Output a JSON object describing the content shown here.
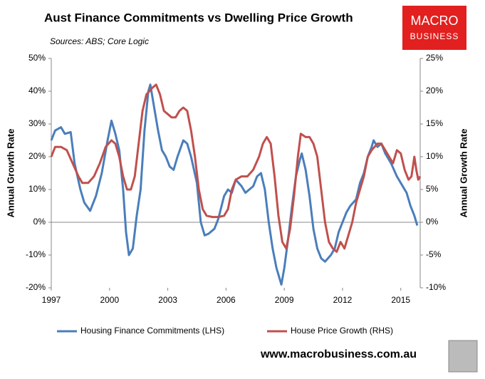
{
  "chart_data": {
    "type": "line",
    "title": "Aust Finance Commitments vs Dwelling Price Growth",
    "subtitle": "Sources: ABS; Core Logic",
    "y_label": "Annual Growth Rate",
    "y2_label": "Annual Growth Rate",
    "xlim": [
      1997,
      2016
    ],
    "xticks": [
      1997,
      2000,
      2003,
      2006,
      2009,
      2012,
      2015
    ],
    "ylim": [
      -20,
      50
    ],
    "yticks": [
      {
        "value": -20,
        "label": "-20%"
      },
      {
        "value": -10,
        "label": "-10%"
      },
      {
        "value": 0,
        "label": "0%"
      },
      {
        "value": 10,
        "label": "10%"
      },
      {
        "value": 20,
        "label": "20%"
      },
      {
        "value": 30,
        "label": "30%"
      },
      {
        "value": 40,
        "label": "40%"
      },
      {
        "value": 50,
        "label": "50%"
      }
    ],
    "y2lim": [
      -10,
      25
    ],
    "y2ticks": [
      {
        "value": -10,
        "label": "-10%"
      },
      {
        "value": -5,
        "label": "-5%"
      },
      {
        "value": 0,
        "label": "0%"
      },
      {
        "value": 5,
        "label": "5%"
      },
      {
        "value": 10,
        "label": "10%"
      },
      {
        "value": 15,
        "label": "15%"
      },
      {
        "value": 20,
        "label": "20%"
      },
      {
        "value": 25,
        "label": "25%"
      }
    ],
    "legend": "bottom",
    "series": [
      {
        "name": "Housing Finance Commitments (LHS)",
        "color": "#4a7ebb",
        "axis": "y",
        "x": [
          1997.0,
          1997.2,
          1997.5,
          1997.7,
          1998.0,
          1998.2,
          1998.5,
          1998.7,
          1999.0,
          1999.3,
          1999.6,
          1999.9,
          2000.1,
          2000.3,
          2000.5,
          2000.7,
          2000.85,
          2001.0,
          2001.2,
          2001.4,
          2001.6,
          2001.8,
          2002.0,
          2002.1,
          2002.3,
          2002.5,
          2002.7,
          2002.9,
          2003.1,
          2003.3,
          2003.5,
          2003.8,
          2004.0,
          2004.2,
          2004.5,
          2004.7,
          2004.9,
          2005.1,
          2005.4,
          2005.6,
          2005.9,
          2006.1,
          2006.3,
          2006.5,
          2006.8,
          2007.0,
          2007.2,
          2007.4,
          2007.6,
          2007.8,
          2008.0,
          2008.2,
          2008.4,
          2008.6,
          2008.85,
          2009.0,
          2009.2,
          2009.4,
          2009.6,
          2009.8,
          2009.9,
          2010.1,
          2010.3,
          2010.5,
          2010.7,
          2010.9,
          2011.1,
          2011.4,
          2011.6,
          2011.8,
          2012.0,
          2012.2,
          2012.4,
          2012.7,
          2012.9,
          2013.1,
          2013.3,
          2013.5,
          2013.6,
          2013.8,
          2014.0,
          2014.2,
          2014.5,
          2014.8,
          2015.0,
          2015.3,
          2015.5,
          2015.7,
          2015.85
        ],
        "values": [
          25,
          28,
          29,
          27,
          27.5,
          18,
          10,
          6,
          3.5,
          8,
          15,
          25,
          31,
          27,
          22,
          10,
          -3,
          -10,
          -8,
          2,
          10,
          28,
          40,
          42,
          35,
          28,
          22,
          20,
          17,
          16,
          20,
          25,
          24,
          20,
          12,
          0,
          -4,
          -3.5,
          -2,
          1,
          8,
          10,
          9,
          13,
          11,
          9,
          10,
          11,
          14,
          15,
          10,
          0,
          -8,
          -14,
          -19,
          -14,
          -5,
          5,
          14,
          19,
          21,
          16,
          8,
          -2,
          -8,
          -11,
          -12,
          -10,
          -8,
          -3,
          0,
          3,
          5,
          7,
          12,
          15,
          20,
          23,
          25,
          23,
          24,
          21,
          18,
          14,
          12,
          9,
          5,
          2,
          -1
        ]
      },
      {
        "name": "House Price Growth (RHS)",
        "color": "#c0504d",
        "axis": "y2",
        "x": [
          1997.0,
          1997.2,
          1997.5,
          1997.8,
          1998.1,
          1998.4,
          1998.6,
          1998.9,
          1999.2,
          1999.5,
          1999.8,
          2000.1,
          2000.3,
          2000.5,
          2000.7,
          2000.9,
          2001.1,
          2001.3,
          2001.5,
          2001.7,
          2001.9,
          2002.2,
          2002.4,
          2002.6,
          2002.8,
          2003.0,
          2003.2,
          2003.4,
          2003.6,
          2003.8,
          2004.0,
          2004.2,
          2004.4,
          2004.6,
          2004.8,
          2005.0,
          2005.3,
          2005.6,
          2005.9,
          2006.1,
          2006.3,
          2006.5,
          2006.8,
          2007.1,
          2007.4,
          2007.7,
          2007.9,
          2008.1,
          2008.3,
          2008.5,
          2008.7,
          2008.9,
          2009.1,
          2009.3,
          2009.5,
          2009.7,
          2009.85,
          2010.1,
          2010.3,
          2010.5,
          2010.7,
          2010.9,
          2011.1,
          2011.3,
          2011.5,
          2011.7,
          2011.9,
          2012.1,
          2012.3,
          2012.5,
          2012.7,
          2012.9,
          2013.1,
          2013.3,
          2013.5,
          2013.8,
          2014.0,
          2014.2,
          2014.4,
          2014.6,
          2014.8,
          2015.0,
          2015.2,
          2015.4,
          2015.55,
          2015.7,
          2015.8,
          2015.9,
          2016.0
        ],
        "values": [
          10,
          11.5,
          11.5,
          11,
          9,
          7,
          6,
          6,
          7,
          9,
          11.5,
          12.5,
          12,
          10,
          7,
          5,
          5,
          7,
          12,
          17,
          19.5,
          20.5,
          21,
          19.5,
          17,
          16.5,
          16,
          16,
          17,
          17.5,
          17,
          14,
          10,
          5,
          2,
          1,
          0.8,
          0.8,
          1,
          2,
          5,
          6.5,
          7,
          7,
          8,
          10,
          12,
          13,
          12,
          7,
          1,
          -3,
          -4,
          -1,
          4,
          10,
          13.5,
          13,
          13,
          12,
          10,
          5,
          0,
          -3,
          -4,
          -4.5,
          -3,
          -4,
          -2,
          0,
          3,
          5,
          7,
          10,
          11,
          12,
          12,
          11,
          10,
          9,
          11,
          10.5,
          8,
          6.5,
          7,
          10,
          8,
          6.5,
          7
        ]
      }
    ]
  },
  "branding": {
    "logo_top": "MACRO",
    "logo_bottom": "BUSINESS",
    "website": "www.macrobusiness.com.au"
  }
}
